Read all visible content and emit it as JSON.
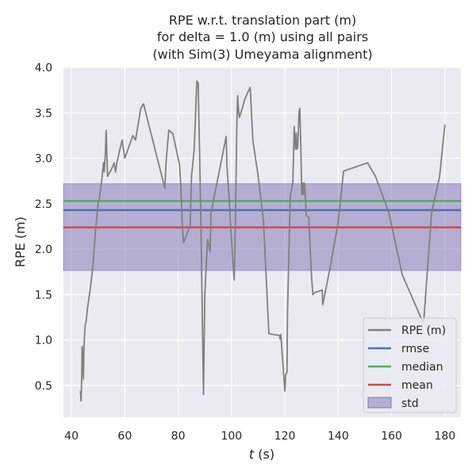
{
  "chart_data": {
    "type": "line",
    "title_lines": [
      "RPE w.r.t. translation part (m)",
      "for delta = 1.0 (m) using all pairs",
      "(with Sim(3) Umeyama alignment)"
    ],
    "xlabel_italic": "t",
    "xlabel_rest": " (s)",
    "ylabel": "RPE (m)",
    "xlim": [
      37,
      186
    ],
    "ylim": [
      0.15,
      4.0
    ],
    "xticks": [
      40,
      60,
      80,
      100,
      120,
      140,
      160,
      180
    ],
    "yticks": [
      0.5,
      1.0,
      1.5,
      2.0,
      2.5,
      3.0,
      3.5,
      4.0
    ],
    "grid": true,
    "legend_position": "lower-right",
    "series": [
      {
        "name": "RPE (m)",
        "color": "#808080",
        "x": [
          43.3,
          43.5,
          43.6,
          43.8,
          44.0,
          44.2,
          44.5,
          44.7,
          45.0,
          45.2,
          45.5,
          46.0,
          47.0,
          48.0,
          49.0,
          50.0,
          50.5,
          51.0,
          51.5,
          52.0,
          52.3,
          52.7,
          53.0,
          53.5,
          55.0,
          56.0,
          56.5,
          57.0,
          58.0,
          59.0,
          60.0,
          63.0,
          64.0,
          66.0,
          67.0,
          75.0,
          75.5,
          76.5,
          78.0,
          80.5,
          81.0,
          81.5,
          82.0,
          84.5,
          85.0,
          86.0,
          87.0,
          87.5,
          88.0,
          88.5,
          89.0,
          89.5,
          90.0,
          91.0,
          92.0,
          92.3,
          98.0,
          98.3,
          99.0,
          100.0,
          101.0,
          101.5,
          102.0,
          102.3,
          102.7,
          103.0,
          104.0,
          105.0,
          106.0,
          107.0,
          108.0,
          110.0,
          112.0,
          114.0,
          118.0,
          118.2,
          118.5,
          119.0,
          120.0,
          120.3,
          120.8,
          121.0,
          122.0,
          123.0,
          123.5,
          124.0,
          124.3,
          124.5,
          124.8,
          125.0,
          125.3,
          125.6,
          126.0,
          126.3,
          126.6,
          127.0,
          127.2,
          127.5,
          128.0,
          129.0,
          129.5,
          130.0,
          130.5,
          131.0,
          134.0,
          134.2,
          137.0,
          140.0,
          142.0,
          151.0,
          154.0,
          159.0,
          164.0,
          172.0,
          175.0,
          178.0,
          180.0
        ],
        "y": [
          0.44,
          0.38,
          0.33,
          0.55,
          0.93,
          0.88,
          0.57,
          0.94,
          1.1,
          1.18,
          1.2,
          1.35,
          1.55,
          1.8,
          2.2,
          2.5,
          2.57,
          2.68,
          2.8,
          2.95,
          2.85,
          3.05,
          3.31,
          2.8,
          2.88,
          2.95,
          2.85,
          2.95,
          3.08,
          3.2,
          3.0,
          3.25,
          3.2,
          3.55,
          3.6,
          2.67,
          2.98,
          3.31,
          3.27,
          2.93,
          2.7,
          2.3,
          2.07,
          2.26,
          2.8,
          3.1,
          3.85,
          3.83,
          3.1,
          2.3,
          1.4,
          0.4,
          1.5,
          2.11,
          1.97,
          2.4,
          3.24,
          2.9,
          2.6,
          2.1,
          1.66,
          2.4,
          3.4,
          3.69,
          3.5,
          3.45,
          3.55,
          3.65,
          3.72,
          3.78,
          3.2,
          2.8,
          2.3,
          1.07,
          1.05,
          1.01,
          1.06,
          0.85,
          0.44,
          0.62,
          0.65,
          1.3,
          2.57,
          2.75,
          3.35,
          3.1,
          3.28,
          3.1,
          3.12,
          3.25,
          3.5,
          3.55,
          3.1,
          2.6,
          2.73,
          2.6,
          2.73,
          2.7,
          2.37,
          2.35,
          2.0,
          1.7,
          1.5,
          1.52,
          1.55,
          1.39,
          1.8,
          2.3,
          2.86,
          2.95,
          2.8,
          2.4,
          1.72,
          1.18,
          2.4,
          2.8,
          3.37
        ]
      }
    ],
    "stats": {
      "rmse": 2.43,
      "median": 2.53,
      "mean": 2.24,
      "std_low": 1.765,
      "std_high": 2.72
    },
    "legend": [
      {
        "label": "RPE (m)",
        "kind": "line",
        "color": "#808080"
      },
      {
        "label": "rmse",
        "kind": "line",
        "color": "#4c72b0"
      },
      {
        "label": "median",
        "kind": "line",
        "color": "#55a868"
      },
      {
        "label": "mean",
        "kind": "line",
        "color": "#c44e52"
      },
      {
        "label": "std",
        "kind": "patch",
        "color": "#8172b2"
      }
    ]
  }
}
